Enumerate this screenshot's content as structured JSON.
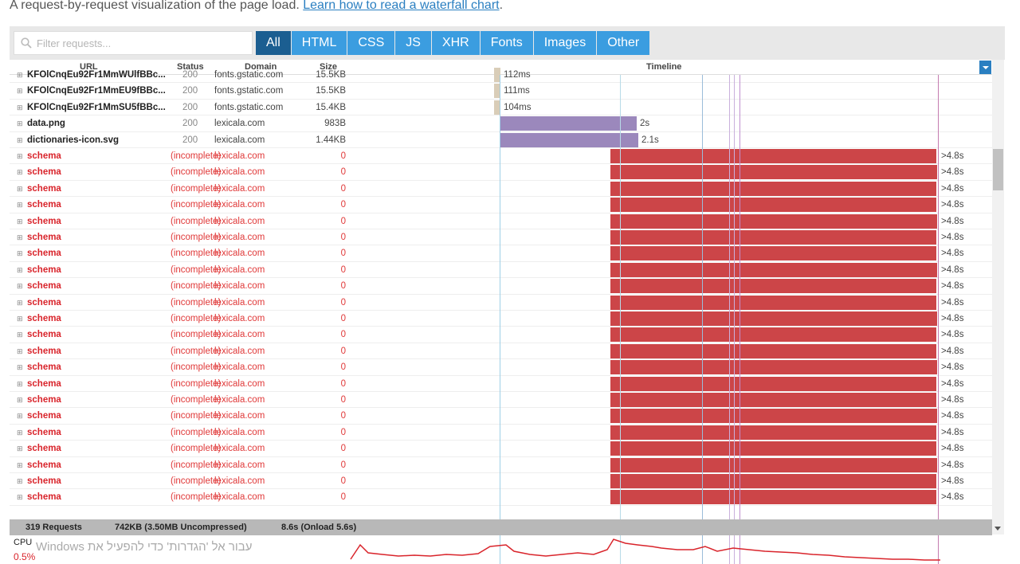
{
  "intro": {
    "text": "A request-by-request visualization of the page load.",
    "link": "Learn how to read a waterfall chart",
    "end": "."
  },
  "filter": {
    "placeholder": "Filter requests..."
  },
  "tabs": [
    {
      "label": "All",
      "active": true
    },
    {
      "label": "HTML",
      "active": false
    },
    {
      "label": "CSS",
      "active": false
    },
    {
      "label": "JS",
      "active": false
    },
    {
      "label": "XHR",
      "active": false
    },
    {
      "label": "Fonts",
      "active": false
    },
    {
      "label": "Images",
      "active": false
    },
    {
      "label": "Other",
      "active": false
    }
  ],
  "columns": {
    "url": "URL",
    "status": "Status",
    "domain": "Domain",
    "size": "Size",
    "timeline": "Timeline"
  },
  "rows": [
    {
      "url": "KFOlCnqEu92Fr1MmWUlfBBc...",
      "status": "200",
      "domain": "fonts.gstatic.com",
      "size": "15.5KB",
      "time": "112ms",
      "type": "font",
      "error": false
    },
    {
      "url": "KFOlCnqEu92Fr1MmEU9fBBc...",
      "status": "200",
      "domain": "fonts.gstatic.com",
      "size": "15.5KB",
      "time": "111ms",
      "type": "font",
      "error": false
    },
    {
      "url": "KFOlCnqEu92Fr1MmSU5fBBc...",
      "status": "200",
      "domain": "fonts.gstatic.com",
      "size": "15.4KB",
      "time": "104ms",
      "type": "font",
      "error": false
    },
    {
      "url": "data.png",
      "status": "200",
      "domain": "lexicala.com",
      "size": "983B",
      "time": "2s",
      "type": "image",
      "error": false
    },
    {
      "url": "dictionaries-icon.svg",
      "status": "200",
      "domain": "lexicala.com",
      "size": "1.44KB",
      "time": "2.1s",
      "type": "image",
      "error": false
    },
    {
      "url": "schema",
      "status": "(incomplete)",
      "domain": "lexicala.com",
      "size": "0",
      "time": ">4.8s",
      "type": "error",
      "error": true
    },
    {
      "url": "schema",
      "status": "(incomplete)",
      "domain": "lexicala.com",
      "size": "0",
      "time": ">4.8s",
      "type": "error",
      "error": true
    },
    {
      "url": "schema",
      "status": "(incomplete)",
      "domain": "lexicala.com",
      "size": "0",
      "time": ">4.8s",
      "type": "error",
      "error": true
    },
    {
      "url": "schema",
      "status": "(incomplete)",
      "domain": "lexicala.com",
      "size": "0",
      "time": ">4.8s",
      "type": "error",
      "error": true
    },
    {
      "url": "schema",
      "status": "(incomplete)",
      "domain": "lexicala.com",
      "size": "0",
      "time": ">4.8s",
      "type": "error",
      "error": true
    },
    {
      "url": "schema",
      "status": "(incomplete)",
      "domain": "lexicala.com",
      "size": "0",
      "time": ">4.8s",
      "type": "error",
      "error": true
    },
    {
      "url": "schema",
      "status": "(incomplete)",
      "domain": "lexicala.com",
      "size": "0",
      "time": ">4.8s",
      "type": "error",
      "error": true
    },
    {
      "url": "schema",
      "status": "(incomplete)",
      "domain": "lexicala.com",
      "size": "0",
      "time": ">4.8s",
      "type": "error",
      "error": true
    },
    {
      "url": "schema",
      "status": "(incomplete)",
      "domain": "lexicala.com",
      "size": "0",
      "time": ">4.8s",
      "type": "error",
      "error": true
    },
    {
      "url": "schema",
      "status": "(incomplete)",
      "domain": "lexicala.com",
      "size": "0",
      "time": ">4.8s",
      "type": "error",
      "error": true
    },
    {
      "url": "schema",
      "status": "(incomplete)",
      "domain": "lexicala.com",
      "size": "0",
      "time": ">4.8s",
      "type": "error",
      "error": true
    },
    {
      "url": "schema",
      "status": "(incomplete)",
      "domain": "lexicala.com",
      "size": "0",
      "time": ">4.8s",
      "type": "error",
      "error": true
    },
    {
      "url": "schema",
      "status": "(incomplete)",
      "domain": "lexicala.com",
      "size": "0",
      "time": ">4.8s",
      "type": "error",
      "error": true
    },
    {
      "url": "schema",
      "status": "(incomplete)",
      "domain": "lexicala.com",
      "size": "0",
      "time": ">4.8s",
      "type": "error",
      "error": true
    },
    {
      "url": "schema",
      "status": "(incomplete)",
      "domain": "lexicala.com",
      "size": "0",
      "time": ">4.8s",
      "type": "error",
      "error": true
    },
    {
      "url": "schema",
      "status": "(incomplete)",
      "domain": "lexicala.com",
      "size": "0",
      "time": ">4.8s",
      "type": "error",
      "error": true
    },
    {
      "url": "schema",
      "status": "(incomplete)",
      "domain": "lexicala.com",
      "size": "0",
      "time": ">4.8s",
      "type": "error",
      "error": true
    },
    {
      "url": "schema",
      "status": "(incomplete)",
      "domain": "lexicala.com",
      "size": "0",
      "time": ">4.8s",
      "type": "error",
      "error": true
    },
    {
      "url": "schema",
      "status": "(incomplete)",
      "domain": "lexicala.com",
      "size": "0",
      "time": ">4.8s",
      "type": "error",
      "error": true
    },
    {
      "url": "schema",
      "status": "(incomplete)",
      "domain": "lexicala.com",
      "size": "0",
      "time": ">4.8s",
      "type": "error",
      "error": true
    },
    {
      "url": "schema",
      "status": "(incomplete)",
      "domain": "lexicala.com",
      "size": "0",
      "time": ">4.8s",
      "type": "error",
      "error": true
    },
    {
      "url": "schema",
      "status": "(incomplete)",
      "domain": "lexicala.com",
      "size": "0",
      "time": ">4.8s",
      "type": "error",
      "error": true
    }
  ],
  "footer": {
    "requests": "319 Requests",
    "size": "742KB (3.50MB Uncompressed)",
    "time": "8.6s (Onload 5.6s)"
  },
  "cpu": {
    "label": "CPU",
    "value": "0.5%"
  },
  "watermark": "עבור אל 'הגדרות' כדי להפעיל את Windows",
  "colors": {
    "font": "#d9cdb8",
    "image": "#9b88bc",
    "error": "#cc4548",
    "tab": "#3b9de0",
    "tab_active": "#1b5e91"
  }
}
